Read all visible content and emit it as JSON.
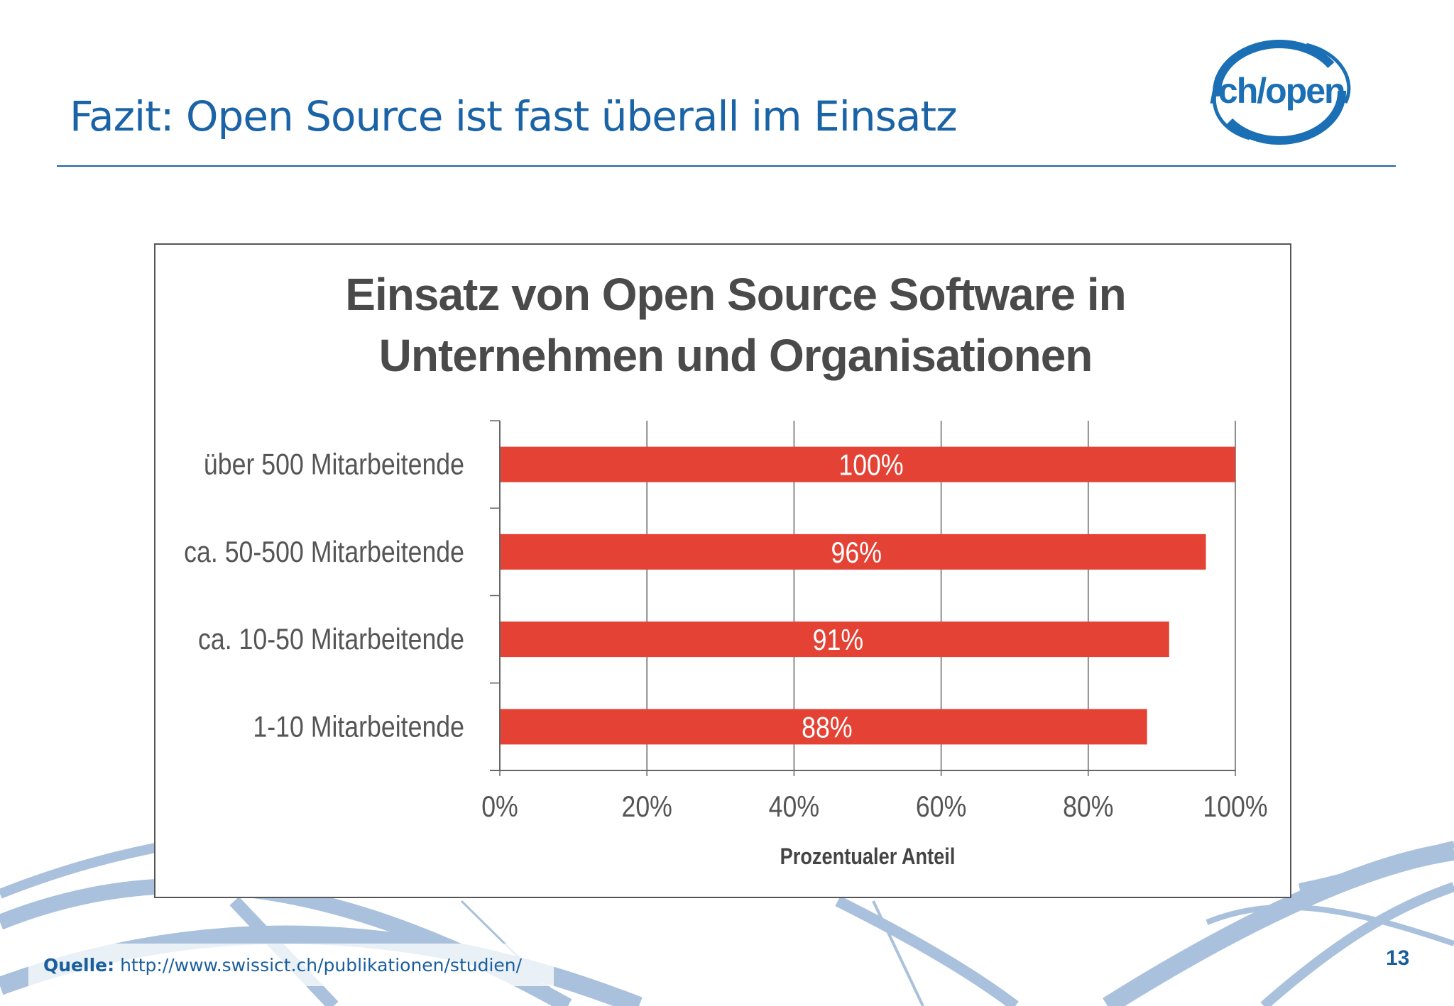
{
  "slide": {
    "title": "Fazit: Open Source ist fast überall im Einsatz",
    "logo_text": "/ch/open",
    "source_label": "Quelle:",
    "source_url": "http://www.swissict.ch/publikationen/studien/",
    "page_number": "13",
    "colors": {
      "accent": "#1a63a6",
      "bar": "#e34234",
      "swoosh": "#a9c1dc"
    }
  },
  "chart_data": {
    "type": "bar",
    "orientation": "horizontal",
    "title_lines": [
      "Einsatz von Open Source Software in",
      "Unternehmen und Organisationen"
    ],
    "categories": [
      "über 500 Mitarbeitende",
      "ca. 50-500 Mitarbeitende",
      "ca. 10-50 Mitarbeitende",
      "1-10 Mitarbeitende"
    ],
    "values": [
      100,
      96,
      91,
      88
    ],
    "data_labels": [
      "100%",
      "96%",
      "91%",
      "88%"
    ],
    "xlabel": "Prozentualer Anteil",
    "xlim": [
      0,
      100
    ],
    "x_ticks": [
      "0%",
      "20%",
      "40%",
      "60%",
      "80%",
      "100%"
    ],
    "grid": "vertical",
    "legend": "none"
  }
}
